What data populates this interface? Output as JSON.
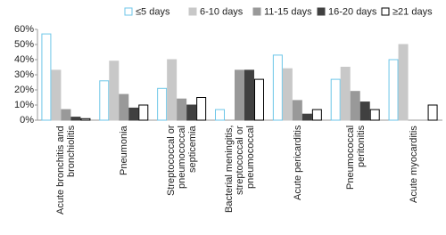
{
  "chart_data": {
    "type": "bar",
    "categories": [
      "Acute bronchitis and bronchiolitis",
      "Pneumonia",
      "Streptococcal or pneumococcal septicemia",
      "Bacterial meningitis, streptococcal or pneumococcal",
      "Acute pericarditis",
      "Pneumococcal peritonitis",
      "Acute myocarditis"
    ],
    "series": [
      {
        "name": "≤5 days",
        "color": "#ffffff",
        "edgecolor": "#6cc6e8",
        "values": [
          57,
          26,
          21,
          7,
          43,
          27,
          40
        ]
      },
      {
        "name": "6-10 days",
        "color": "#c8c8c8",
        "edgecolor": "#c8c8c8",
        "values": [
          33,
          39,
          40,
          0,
          34,
          35,
          50
        ]
      },
      {
        "name": "11-15 days",
        "color": "#999999",
        "edgecolor": "#999999",
        "values": [
          7,
          17,
          14,
          33,
          13,
          19,
          0
        ]
      },
      {
        "name": "16-20 days",
        "color": "#404040",
        "edgecolor": "#404040",
        "values": [
          2,
          8,
          10,
          33,
          4,
          12,
          0
        ]
      },
      {
        "name": "≥21 days",
        "color": "#ffffff",
        "edgecolor": "#000000",
        "values": [
          1,
          10,
          15,
          27,
          7,
          7,
          10
        ]
      }
    ],
    "ylim": [
      0,
      60
    ],
    "yticks": [
      {
        "value": 0,
        "label": "0%"
      },
      {
        "value": 10,
        "label": "10%"
      },
      {
        "value": 20,
        "label": "20%"
      },
      {
        "value": 30,
        "label": "30%"
      },
      {
        "value": 40,
        "label": "40%"
      },
      {
        "value": 50,
        "label": "50%"
      },
      {
        "value": 60,
        "label": "60%"
      }
    ],
    "grid": false,
    "legend": "top"
  }
}
